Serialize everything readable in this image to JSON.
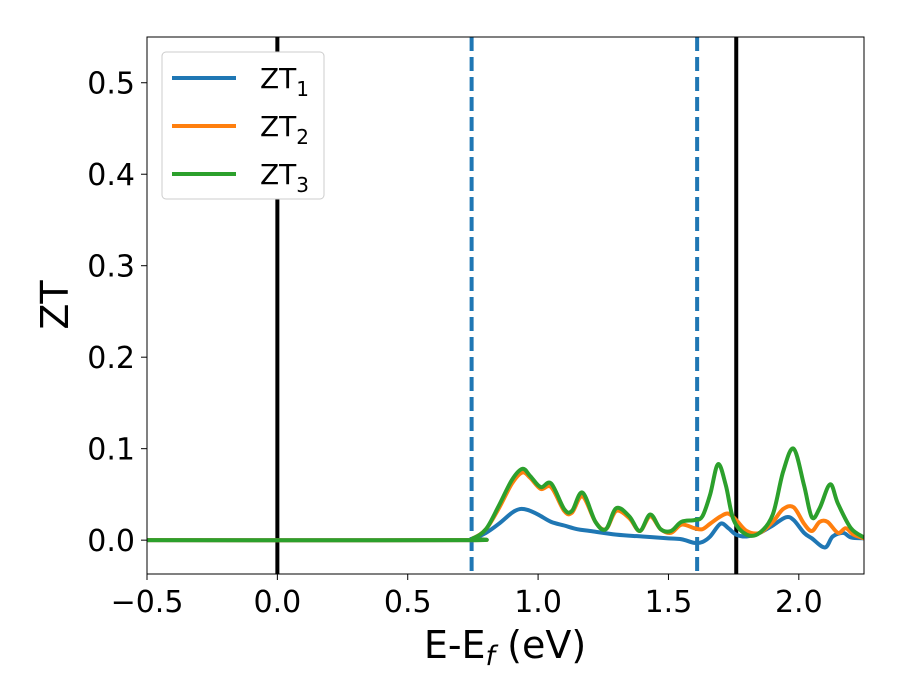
{
  "chart_data": {
    "type": "line",
    "xlabel": "E-E_f (eV)",
    "xlabel_parts": {
      "main": "E-E",
      "sub": "f",
      "tail": " (eV)"
    },
    "ylabel": "ZT",
    "xlim": [
      -0.5,
      2.25
    ],
    "ylim": [
      -0.037,
      0.55
    ],
    "x_ticks": [
      -0.5,
      0.0,
      0.5,
      1.0,
      1.5,
      2.0
    ],
    "x_tick_labels": [
      "−0.5",
      "0.0",
      "0.5",
      "1.0",
      "1.5",
      "2.0"
    ],
    "y_ticks": [
      0.0,
      0.1,
      0.2,
      0.3,
      0.4,
      0.5
    ],
    "y_tick_labels": [
      "0.0",
      "0.1",
      "0.2",
      "0.3",
      "0.4",
      "0.5"
    ],
    "grid": false,
    "legend_position": "top-left",
    "vertical_lines": [
      {
        "x": 0.0,
        "style": "solid",
        "color": "#000000"
      },
      {
        "x": 0.745,
        "style": "dashed",
        "color": "#1f77b4"
      },
      {
        "x": 1.61,
        "style": "dashed",
        "color": "#1f77b4"
      },
      {
        "x": 1.76,
        "style": "solid",
        "color": "#000000"
      }
    ],
    "series": [
      {
        "name": "ZT_1",
        "label_main": "ZT",
        "label_sub": "1",
        "color": "#1f77b4",
        "x": [
          -0.5,
          0.7,
          0.75,
          0.8,
          0.85,
          0.9,
          0.93,
          0.96,
          1.0,
          1.05,
          1.1,
          1.15,
          1.2,
          1.3,
          1.4,
          1.5,
          1.55,
          1.6,
          1.63,
          1.66,
          1.7,
          1.73,
          1.76,
          1.8,
          1.85,
          1.9,
          1.95,
          1.98,
          2.02,
          2.05,
          2.1,
          2.13,
          2.17,
          2.2,
          2.25
        ],
        "y": [
          0.0,
          0.0,
          0.002,
          0.008,
          0.018,
          0.03,
          0.034,
          0.033,
          0.028,
          0.02,
          0.016,
          0.012,
          0.01,
          0.006,
          0.004,
          0.002,
          0.001,
          -0.003,
          -0.002,
          0.004,
          0.018,
          0.013,
          0.006,
          0.004,
          0.008,
          0.016,
          0.025,
          0.022,
          0.008,
          0.002,
          -0.008,
          0.004,
          0.008,
          0.003,
          0.002
        ]
      },
      {
        "name": "ZT_2",
        "label_main": "ZT",
        "label_sub": "2",
        "color": "#ff7f0e",
        "x": [
          -0.5,
          0.7,
          0.75,
          0.8,
          0.85,
          0.9,
          0.94,
          0.97,
          1.01,
          1.05,
          1.1,
          1.13,
          1.17,
          1.22,
          1.26,
          1.3,
          1.35,
          1.39,
          1.43,
          1.47,
          1.51,
          1.55,
          1.6,
          1.63,
          1.66,
          1.7,
          1.73,
          1.76,
          1.8,
          1.85,
          1.9,
          1.94,
          1.98,
          2.02,
          2.05,
          2.08,
          2.11,
          2.15,
          2.18,
          2.21,
          2.25
        ],
        "y": [
          0.0,
          0.0,
          0.002,
          0.012,
          0.035,
          0.062,
          0.074,
          0.068,
          0.056,
          0.058,
          0.032,
          0.03,
          0.048,
          0.02,
          0.012,
          0.032,
          0.024,
          0.01,
          0.026,
          0.012,
          0.008,
          0.017,
          0.013,
          0.012,
          0.018,
          0.026,
          0.029,
          0.022,
          0.01,
          0.008,
          0.02,
          0.034,
          0.036,
          0.018,
          0.01,
          0.02,
          0.02,
          0.008,
          0.013,
          0.006,
          0.002
        ]
      },
      {
        "name": "ZT_3",
        "label_main": "ZT",
        "label_sub": "3",
        "color": "#2ca02c",
        "x": [
          -0.5,
          0.7,
          0.75,
          0.8,
          0.85,
          0.9,
          0.94,
          0.97,
          1.01,
          1.05,
          1.1,
          1.13,
          1.17,
          1.22,
          1.26,
          1.3,
          1.35,
          1.39,
          1.43,
          1.47,
          1.51,
          1.55,
          1.6,
          1.63,
          1.66,
          1.69,
          1.72,
          1.75,
          1.8,
          1.85,
          1.9,
          1.94,
          1.98,
          2.02,
          2.05,
          2.08,
          2.12,
          2.15,
          2.2,
          2.25
        ],
        "y": [
          0.0,
          0.0,
          0.002,
          0.012,
          0.038,
          0.066,
          0.078,
          0.07,
          0.058,
          0.062,
          0.034,
          0.032,
          0.052,
          0.02,
          0.012,
          0.035,
          0.026,
          0.01,
          0.028,
          0.012,
          0.01,
          0.02,
          0.022,
          0.026,
          0.05,
          0.083,
          0.06,
          0.022,
          0.006,
          0.008,
          0.028,
          0.075,
          0.1,
          0.06,
          0.025,
          0.035,
          0.061,
          0.04,
          0.013,
          0.003
        ]
      }
    ]
  }
}
